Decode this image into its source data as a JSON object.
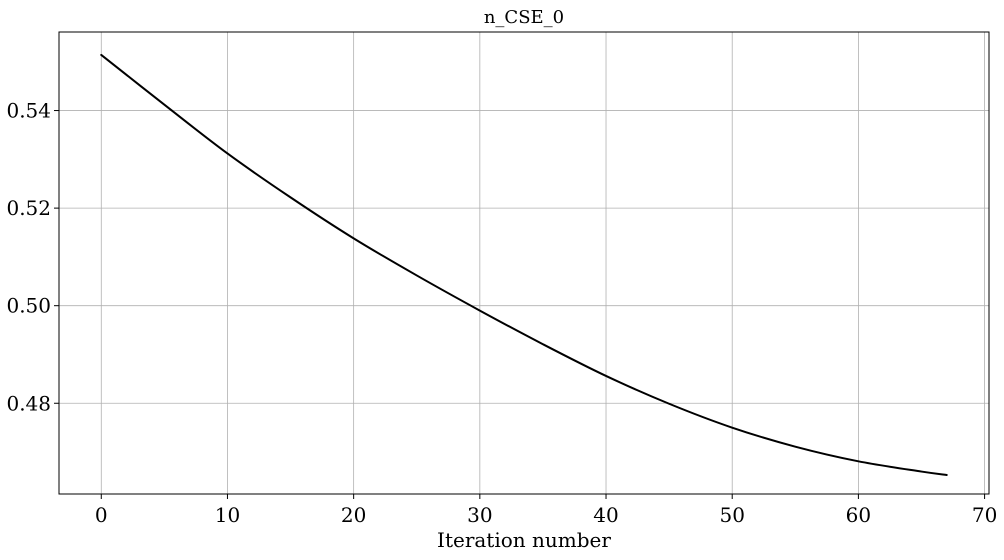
{
  "chart_data": {
    "type": "line",
    "title": "n_CSE_0",
    "xlabel": "Iteration number",
    "ylabel": "",
    "xlim": [
      -3.35,
      70.35
    ],
    "ylim": [
      0.4614,
      0.5561
    ],
    "xticks": [
      0,
      10,
      20,
      30,
      40,
      50,
      60,
      70
    ],
    "xtick_labels": [
      "0",
      "10",
      "20",
      "30",
      "40",
      "50",
      "60",
      "70"
    ],
    "yticks": [
      0.48,
      0.5,
      0.52,
      0.54
    ],
    "ytick_labels": [
      "0.48",
      "0.50",
      "0.52",
      "0.54"
    ],
    "grid": true,
    "line_color": "#000000",
    "grid_color": "#b0b0b0",
    "series": [
      {
        "x": [
          0,
          5,
          10,
          15,
          20,
          25,
          30,
          35,
          40,
          45,
          50,
          55,
          60,
          65,
          67
        ],
        "values": [
          0.5514,
          0.5412,
          0.5312,
          0.5222,
          0.5138,
          0.5062,
          0.499,
          0.4921,
          0.4856,
          0.4799,
          0.475,
          0.4711,
          0.4681,
          0.466,
          0.4653
        ]
      }
    ]
  }
}
